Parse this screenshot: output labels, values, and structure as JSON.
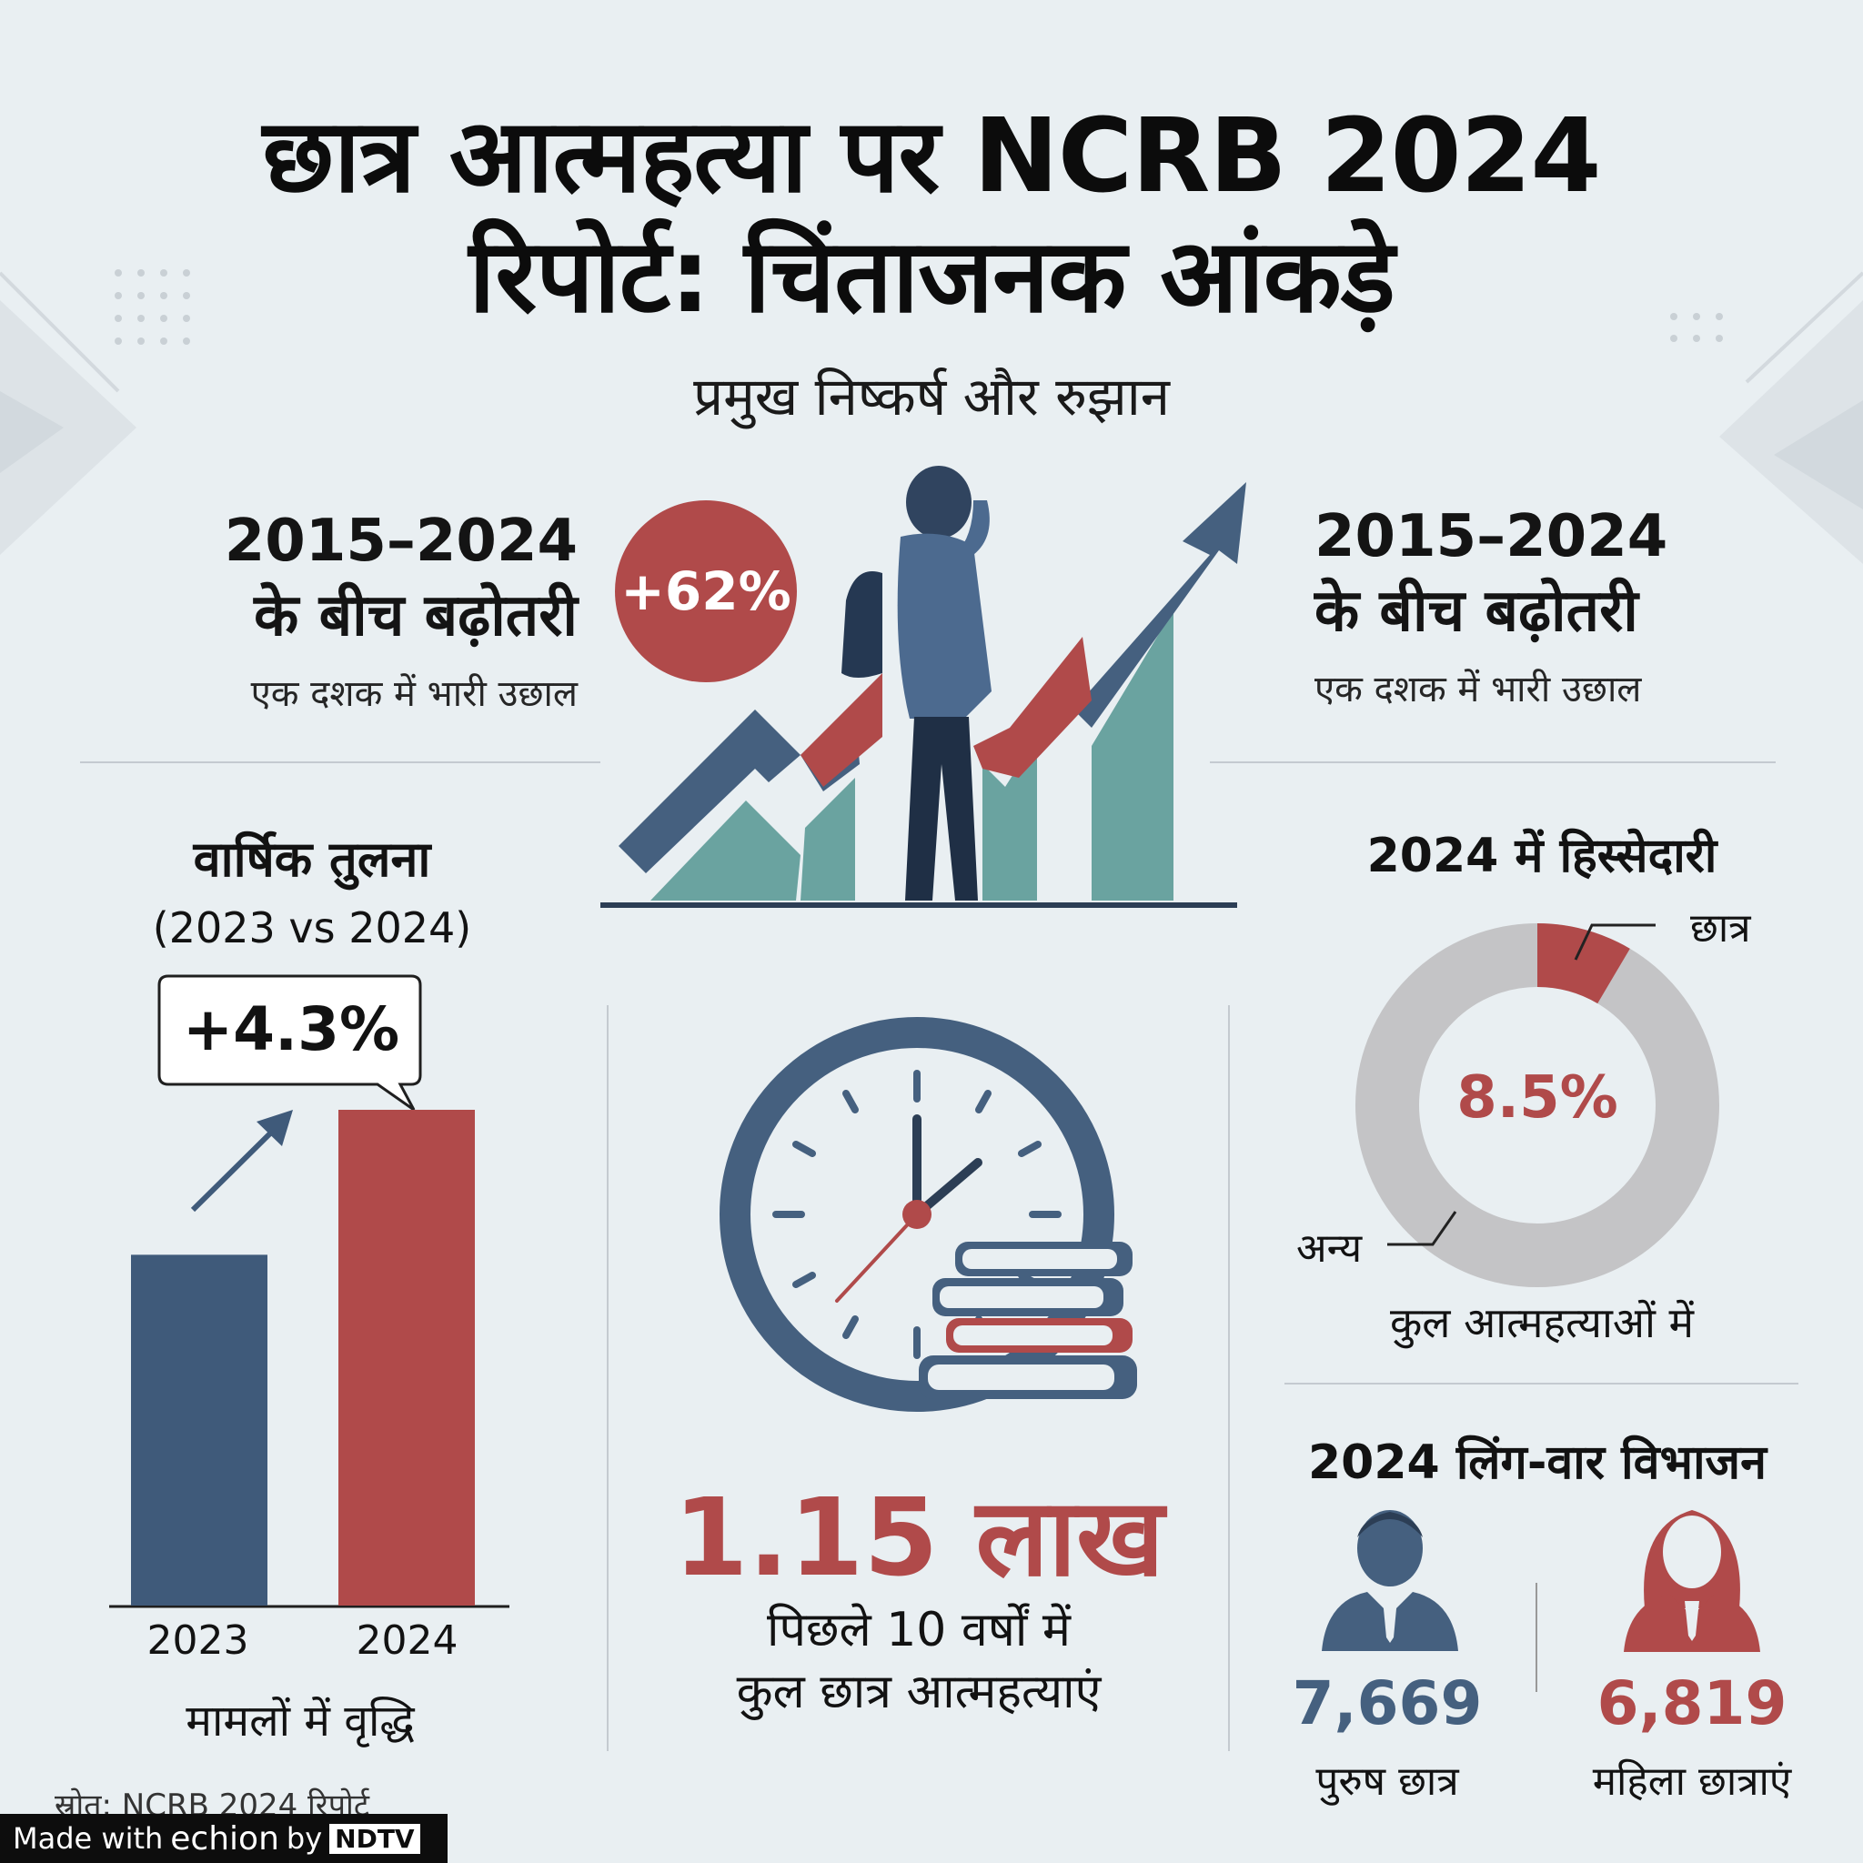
{
  "title": {
    "line1": "छात्र आत्महत्या पर NCRB 2024",
    "line2": "रिपोर्ट: चिंताजनक आंकड़े"
  },
  "subtitle": "प्रमुख निष्कर्ष और रुझान",
  "growth_left": {
    "heading_years": "2015–2024",
    "heading_text": "के बीच बढ़ोतरी",
    "caption": "एक दशक में भारी उछाल"
  },
  "growth_right": {
    "heading_years": "2015–2024",
    "heading_text": "के बीच बढ़ोतरी",
    "caption": "एक दशक में भारी उछाल"
  },
  "growth_badge": "+62%",
  "annual": {
    "heading": "वार्षिक तुलना",
    "subheading": "(2023 vs 2024)",
    "callout": "+4.3%",
    "caption": "मामलों में वृद्धि"
  },
  "chart_data": {
    "type": "bar",
    "categories": [
      "2023",
      "2024"
    ],
    "values": [
      1.0,
      1.043
    ],
    "colors": [
      "#3f5a7a",
      "#b04a4a"
    ]
  },
  "total": {
    "value": "1.15 लाख",
    "caption_line1": "पिछले 10 वर्षों में",
    "caption_line2": "कुल छात्र आत्महत्याएं"
  },
  "share": {
    "heading": "2024 में हिस्सेदारी",
    "percent_label": "8.5%",
    "fraction": 0.085,
    "label_students": "छात्र",
    "label_others": "अन्य",
    "caption": "कुल आत्महत्याओं में",
    "color_students": "#b04a4a",
    "color_others": "#c4c4c6"
  },
  "gender": {
    "heading": "2024 लिंग-वार विभाजन",
    "male_value": "7,669",
    "male_label": "पुरुष छात्र",
    "female_value": "6,819",
    "female_label": "महिला छात्राएं",
    "male_color": "#3f5a7a",
    "female_color": "#b04a4a"
  },
  "source_note": "स्रोत: NCRB 2024 रिपोर्ट",
  "watermark": {
    "made_with": "Made with",
    "brand": "echion",
    "by": "by",
    "ndtv": "NDTV"
  }
}
